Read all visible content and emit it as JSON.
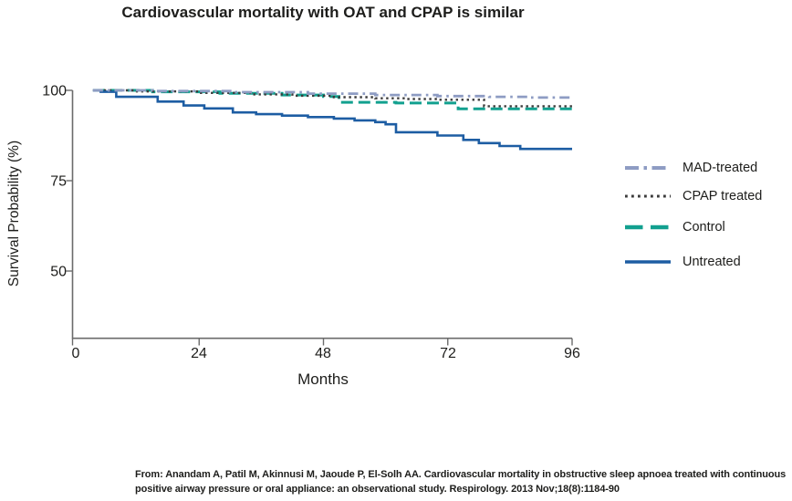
{
  "title": "Cardiovascular mortality with OAT and CPAP is similar",
  "citation": {
    "line1": "From: Anandam A, Patil M, Akinnusi M, Jaoude P, El-Solh AA. Cardiovascular mortality in obstructive sleep apnoea treated with continuous",
    "line2": "positive airway pressure or oral appliance: an observational study. Respirology. 2013 Nov;18(8):1184-90"
  },
  "chart_data": {
    "type": "line",
    "subtype": "kaplan-meier-step",
    "title": "Cardiovascular mortality with OAT and CPAP is similar",
    "xlabel": "Months",
    "ylabel": "Survival Probability (%)",
    "x_ticks": [
      0,
      24,
      48,
      72,
      96
    ],
    "y_ticks": [
      100,
      75,
      50
    ],
    "xlim": [
      0,
      96
    ],
    "ylim": [
      32,
      101
    ],
    "grid": false,
    "legend_position": "right",
    "axis_color": "#6b6b6b",
    "series": [
      {
        "name": "MAD-treated",
        "color": "#8e9cc3",
        "style": "dash-dot",
        "points": [
          [
            3.5,
            100
          ],
          [
            15,
            99.8
          ],
          [
            30,
            99.5
          ],
          [
            45,
            99.1
          ],
          [
            58,
            98.7
          ],
          [
            70,
            98.4
          ],
          [
            80,
            98.2
          ],
          [
            88,
            98.0
          ],
          [
            96,
            98.0
          ]
        ]
      },
      {
        "name": "CPAP treated",
        "color": "#3b3b3b",
        "style": "dotted",
        "points": [
          [
            3.5,
            100
          ],
          [
            12,
            99.7
          ],
          [
            24,
            99.3
          ],
          [
            34,
            98.9
          ],
          [
            42,
            98.5
          ],
          [
            50,
            98.1
          ],
          [
            58,
            97.8
          ],
          [
            64,
            97.6
          ],
          [
            70,
            97.4
          ],
          [
            79,
            95.6
          ],
          [
            96,
            95.6
          ]
        ]
      },
      {
        "name": "Control",
        "color": "#12a08f",
        "style": "dashed",
        "points": [
          [
            3.5,
            100
          ],
          [
            15,
            99.6
          ],
          [
            28,
            99.2
          ],
          [
            40,
            98.7
          ],
          [
            48,
            98.3
          ],
          [
            51,
            96.7
          ],
          [
            62,
            96.5
          ],
          [
            74,
            94.9
          ],
          [
            96,
            94.8
          ]
        ]
      },
      {
        "name": "Untreated",
        "color": "#1d5da3",
        "style": "solid",
        "points": [
          [
            3.5,
            100
          ],
          [
            5,
            99.6
          ],
          [
            8,
            98.2
          ],
          [
            16,
            96.9
          ],
          [
            21,
            95.8
          ],
          [
            25,
            95.0
          ],
          [
            30.5,
            93.9
          ],
          [
            35,
            93.4
          ],
          [
            40,
            93.0
          ],
          [
            45,
            92.6
          ],
          [
            50,
            92.2
          ],
          [
            54,
            91.7
          ],
          [
            58,
            91.2
          ],
          [
            60,
            90.6
          ],
          [
            62,
            88.4
          ],
          [
            70,
            87.5
          ],
          [
            75,
            86.3
          ],
          [
            78,
            85.4
          ],
          [
            82,
            84.6
          ],
          [
            86,
            83.8
          ],
          [
            96,
            83.8
          ]
        ]
      }
    ]
  }
}
